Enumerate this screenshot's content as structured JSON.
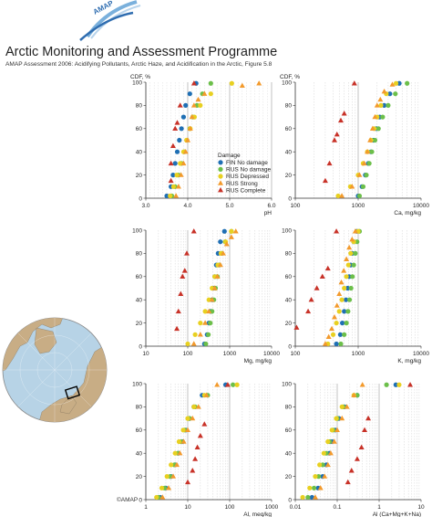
{
  "header": {
    "logo_text": "AMAP",
    "title": "Arctic Monitoring and Assessment Programme",
    "subtitle": "AMAP Assessment 2006: Acidifying Pollutants, Arctic Haze, and Acidification in the Arctic, Figure 5.8"
  },
  "copyright": "©AMAP",
  "colors": {
    "FIN No damage": "#1f6fb4",
    "RUS No damage": "#6cbf4a",
    "RUS Depressed": "#e8d020",
    "RUS Strong": "#f39a2c",
    "RUS Complete": "#c83228"
  },
  "legend": {
    "title": "Damage",
    "entries": [
      "FIN No damage",
      "RUS No damage",
      "RUS Depressed",
      "RUS Strong",
      "RUS Complete"
    ]
  },
  "chart_data": [
    {
      "type": "scatter",
      "ylabel": "CDF, %",
      "xlabel": "pH",
      "xscale": "linear",
      "xlim": [
        3.0,
        6.0
      ],
      "xticks": [
        "3.0",
        "4.0",
        "5.0",
        "6.0"
      ],
      "ylim": [
        0,
        100
      ],
      "yticks": [
        "0",
        "20",
        "40",
        "60",
        "80",
        "100"
      ],
      "series": [
        {
          "name": "FIN No damage",
          "x": [
            3.5,
            3.6,
            3.65,
            3.7,
            3.75,
            3.8,
            3.85,
            3.9,
            3.95,
            4.05,
            4.2
          ],
          "y": [
            2,
            10,
            20,
            30,
            40,
            50,
            60,
            70,
            80,
            90,
            99
          ]
        },
        {
          "name": "RUS No damage",
          "x": [
            3.62,
            3.7,
            3.78,
            3.85,
            3.92,
            3.98,
            4.05,
            4.12,
            4.22,
            4.35,
            4.55
          ],
          "y": [
            2,
            10,
            20,
            30,
            40,
            50,
            60,
            70,
            80,
            90,
            99
          ]
        },
        {
          "name": "RUS Depressed",
          "x": [
            3.58,
            3.66,
            3.74,
            3.82,
            3.9,
            3.97,
            4.06,
            4.16,
            4.3,
            4.55,
            5.05
          ],
          "y": [
            2,
            10,
            20,
            30,
            40,
            50,
            60,
            70,
            80,
            90,
            99
          ]
        },
        {
          "name": "RUS Strong",
          "x": [
            3.72,
            3.78,
            3.84,
            3.9,
            3.95,
            4.0,
            4.06,
            4.1,
            4.15,
            4.25,
            4.4,
            5.3,
            5.7
          ],
          "y": [
            2,
            10,
            20,
            30,
            40,
            50,
            60,
            70,
            80,
            85,
            90,
            97,
            99
          ]
        },
        {
          "name": "RUS Complete",
          "x": [
            3.6,
            3.6,
            3.65,
            3.7,
            3.75,
            3.82,
            4.15
          ],
          "y": [
            15,
            30,
            45,
            60,
            65,
            80,
            99
          ]
        }
      ]
    },
    {
      "type": "scatter",
      "ylabel": "CDF, %",
      "xlabel": "Ca, mg/kg",
      "xscale": "log",
      "xlim": [
        100,
        10000
      ],
      "xticks": [
        "100",
        "1000",
        "10000"
      ],
      "ylim": [
        0,
        100
      ],
      "yticks": [
        "0",
        "20",
        "40",
        "60",
        "80",
        "100"
      ],
      "series": [
        {
          "name": "FIN No damage",
          "x": [
            1000,
            1150,
            1300,
            1450,
            1600,
            1750,
            1950,
            2200,
            2600,
            3200,
            4500
          ],
          "y": [
            2,
            10,
            20,
            30,
            40,
            50,
            60,
            70,
            80,
            90,
            99
          ]
        },
        {
          "name": "RUS No damage",
          "x": [
            1050,
            1200,
            1350,
            1500,
            1650,
            1850,
            2100,
            2450,
            3000,
            3900,
            6000
          ],
          "y": [
            2,
            10,
            20,
            30,
            40,
            50,
            60,
            70,
            80,
            90,
            99
          ]
        },
        {
          "name": "RUS Depressed",
          "x": [
            480,
            750,
            1000,
            1200,
            1400,
            1600,
            1800,
            2000,
            2300,
            2800,
            4000
          ],
          "y": [
            2,
            10,
            20,
            30,
            40,
            50,
            60,
            70,
            80,
            90,
            99
          ]
        },
        {
          "name": "RUS Strong",
          "x": [
            550,
            800,
            1050,
            1250,
            1400,
            1550,
            1700,
            1850,
            2000,
            2250,
            2600,
            3500
          ],
          "y": [
            2,
            10,
            20,
            30,
            40,
            50,
            60,
            70,
            80,
            85,
            92,
            98
          ]
        },
        {
          "name": "RUS Complete",
          "x": [
            300,
            350,
            420,
            460,
            530,
            600,
            870
          ],
          "y": [
            15,
            30,
            50,
            55,
            67,
            73,
            99
          ]
        }
      ]
    },
    {
      "type": "scatter",
      "ylabel": "",
      "xlabel": "Mg, mg/kg",
      "xscale": "log",
      "xlim": [
        10,
        10000
      ],
      "xticks": [
        "10",
        "100",
        "1000",
        "10000"
      ],
      "ylim": [
        0,
        100
      ],
      "yticks": [
        "0",
        "20",
        "40",
        "60",
        "80",
        "100"
      ],
      "series": [
        {
          "name": "FIN No damage",
          "x": [
            250,
            290,
            320,
            350,
            380,
            410,
            440,
            480,
            530,
            600,
            750
          ],
          "y": [
            2,
            10,
            20,
            30,
            40,
            50,
            60,
            70,
            80,
            90,
            99
          ]
        },
        {
          "name": "RUS No damage",
          "x": [
            270,
            310,
            345,
            380,
            420,
            460,
            510,
            570,
            650,
            780,
            1100
          ],
          "y": [
            2,
            10,
            20,
            30,
            40,
            50,
            60,
            70,
            80,
            90,
            99
          ]
        },
        {
          "name": "RUS Depressed",
          "x": [
            100,
            150,
            200,
            260,
            320,
            380,
            440,
            520,
            620,
            800,
            1100
          ],
          "y": [
            2,
            10,
            20,
            30,
            40,
            50,
            60,
            70,
            80,
            90,
            99
          ]
        },
        {
          "name": "RUS Strong",
          "x": [
            140,
            200,
            260,
            320,
            380,
            440,
            510,
            600,
            700,
            850,
            1100,
            1400
          ],
          "y": [
            2,
            10,
            20,
            30,
            40,
            50,
            60,
            70,
            80,
            88,
            94,
            99
          ]
        },
        {
          "name": "RUS Complete",
          "x": [
            55,
            60,
            68,
            75,
            85,
            95,
            140
          ],
          "y": [
            15,
            30,
            45,
            60,
            65,
            80,
            99
          ]
        }
      ]
    },
    {
      "type": "scatter",
      "ylabel": "",
      "xlabel": "K, mg/kg",
      "xscale": "log",
      "xlim": [
        100,
        10000
      ],
      "xticks": [
        "100",
        "1000",
        "10000"
      ],
      "ylim": [
        0,
        100
      ],
      "yticks": [
        "0",
        "20",
        "40",
        "60",
        "80",
        "100"
      ],
      "series": [
        {
          "name": "FIN No damage",
          "x": [
            450,
            520,
            560,
            600,
            640,
            680,
            720,
            760,
            800,
            850,
            950
          ],
          "y": [
            2,
            10,
            20,
            30,
            40,
            50,
            60,
            70,
            80,
            90,
            99
          ]
        },
        {
          "name": "RUS No damage",
          "x": [
            530,
            600,
            650,
            690,
            730,
            770,
            810,
            850,
            900,
            960,
            1050
          ],
          "y": [
            2,
            10,
            20,
            30,
            40,
            50,
            60,
            70,
            80,
            90,
            99
          ]
        },
        {
          "name": "RUS Depressed",
          "x": [
            330,
            400,
            450,
            500,
            550,
            600,
            650,
            700,
            760,
            850,
            1000
          ],
          "y": [
            2,
            10,
            20,
            30,
            40,
            50,
            60,
            70,
            80,
            90,
            99
          ]
        },
        {
          "name": "RUS Strong",
          "x": [
            300,
            340,
            380,
            420,
            460,
            500,
            540,
            590,
            650,
            720,
            800,
            900
          ],
          "y": [
            2,
            8,
            15,
            25,
            35,
            45,
            55,
            65,
            75,
            85,
            92,
            99
          ]
        },
        {
          "name": "RUS Complete",
          "x": [
            105,
            160,
            180,
            220,
            270,
            330,
            450
          ],
          "y": [
            16,
            30,
            40,
            50,
            60,
            67,
            99
          ]
        }
      ]
    },
    {
      "type": "scatter",
      "ylabel": "",
      "xlabel": "Al, meq/kg",
      "xscale": "log",
      "xlim": [
        1,
        1000
      ],
      "xticks": [
        "1",
        "10",
        "100",
        "1000"
      ],
      "ylim": [
        0,
        100
      ],
      "yticks": [
        "0",
        "20",
        "40",
        "60",
        "80",
        "100"
      ],
      "series": [
        {
          "name": "FIN No damage",
          "x": [
            2.2,
            3,
            4,
            5,
            6,
            7.5,
            9,
            11,
            14,
            22,
            80
          ],
          "y": [
            2,
            10,
            20,
            30,
            40,
            50,
            60,
            70,
            80,
            90,
            99
          ]
        },
        {
          "name": "RUS No damage",
          "x": [
            2,
            2.8,
            3.8,
            4.8,
            5.8,
            7,
            8.5,
            11,
            15,
            30,
            120
          ],
          "y": [
            2,
            10,
            20,
            30,
            40,
            50,
            60,
            70,
            80,
            90,
            99
          ]
        },
        {
          "name": "RUS Depressed",
          "x": [
            1.8,
            2.4,
            3.2,
            4,
            5,
            6.2,
            7.8,
            10,
            14,
            25,
            150
          ],
          "y": [
            2,
            10,
            20,
            30,
            40,
            50,
            60,
            70,
            80,
            90,
            99
          ]
        },
        {
          "name": "RUS Strong",
          "x": [
            2.5,
            3.5,
            4.5,
            5.5,
            6.5,
            8,
            10,
            13,
            18,
            28,
            50
          ],
          "y": [
            2,
            10,
            20,
            30,
            40,
            50,
            60,
            70,
            80,
            90,
            99
          ]
        },
        {
          "name": "RUS Complete",
          "x": [
            10,
            13,
            15,
            17,
            20,
            25,
            90
          ],
          "y": [
            15,
            25,
            35,
            45,
            55,
            65,
            99
          ]
        }
      ]
    },
    {
      "type": "scatter",
      "ylabel": "",
      "xlabel": "Al (Ca+Mg+K+Na)",
      "xscale": "log",
      "xlim": [
        0.01,
        10
      ],
      "xticks": [
        "0.01",
        "0.1",
        "1",
        "10"
      ],
      "ylim": [
        0,
        100
      ],
      "yticks": [
        "0",
        "20",
        "40",
        "60",
        "80",
        "100"
      ],
      "series": [
        {
          "name": "FIN No damage",
          "x": [
            0.025,
            0.035,
            0.045,
            0.055,
            0.065,
            0.075,
            0.09,
            0.11,
            0.15,
            0.3,
            2.5
          ],
          "y": [
            2,
            10,
            20,
            30,
            40,
            50,
            60,
            70,
            80,
            90,
            99
          ]
        },
        {
          "name": "RUS No damage",
          "x": [
            0.02,
            0.028,
            0.036,
            0.045,
            0.055,
            0.066,
            0.08,
            0.1,
            0.14,
            0.3,
            1.5
          ],
          "y": [
            2,
            10,
            20,
            30,
            40,
            50,
            60,
            70,
            80,
            90,
            99
          ]
        },
        {
          "name": "RUS Depressed",
          "x": [
            0.015,
            0.022,
            0.03,
            0.038,
            0.048,
            0.06,
            0.075,
            0.095,
            0.13,
            0.25,
            3
          ],
          "y": [
            2,
            10,
            20,
            30,
            40,
            50,
            60,
            70,
            80,
            90,
            99
          ]
        },
        {
          "name": "RUS Strong",
          "x": [
            0.03,
            0.04,
            0.05,
            0.06,
            0.07,
            0.085,
            0.1,
            0.13,
            0.17,
            0.25,
            0.4
          ],
          "y": [
            2,
            10,
            20,
            30,
            40,
            50,
            60,
            70,
            80,
            90,
            99
          ]
        },
        {
          "name": "RUS Complete",
          "x": [
            0.18,
            0.22,
            0.3,
            0.38,
            0.45,
            0.55,
            5.5
          ],
          "y": [
            15,
            25,
            35,
            45,
            60,
            70,
            99
          ]
        }
      ]
    }
  ]
}
